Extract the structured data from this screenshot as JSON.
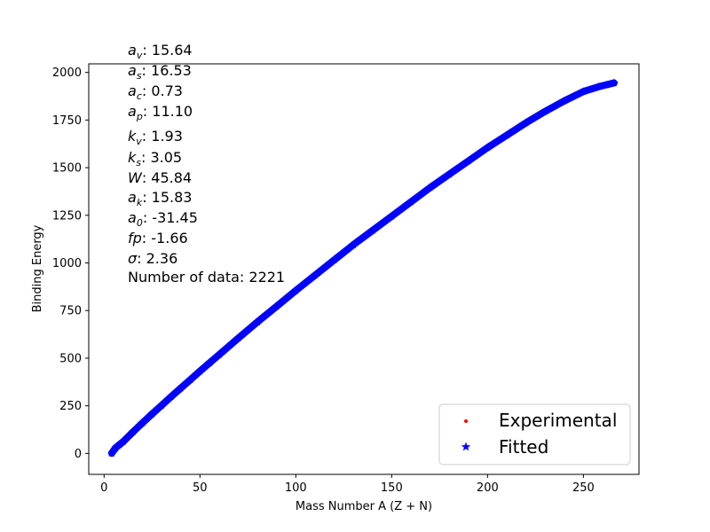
{
  "chart_data": {
    "type": "scatter",
    "xlabel": "Mass Number A (Z + N)",
    "ylabel": "Binding Energy",
    "xlim": [
      -8,
      279
    ],
    "ylim": [
      -110,
      2045
    ],
    "xticks": [
      0,
      50,
      100,
      150,
      200,
      250
    ],
    "yticks": [
      0,
      250,
      500,
      750,
      1000,
      1250,
      1500,
      1750,
      2000
    ],
    "grid": false,
    "legend_position": "lower-right",
    "point_count": 2221,
    "series": [
      {
        "name": "Experimental",
        "marker": "dot",
        "color": "#ff0000",
        "x": [
          4,
          6,
          8,
          10,
          15,
          20,
          25,
          30,
          35,
          40,
          45,
          50,
          55,
          60,
          70,
          80,
          90,
          100,
          110,
          120,
          130,
          140,
          150,
          160,
          170,
          180,
          190,
          200,
          210,
          220,
          230,
          240,
          250,
          258,
          262,
          266
        ],
        "y": [
          1,
          29,
          46,
          62,
          112,
          160,
          207,
          252,
          298,
          343,
          387,
          432,
          475,
          518,
          605,
          690,
          772,
          855,
          935,
          1015,
          1095,
          1170,
          1245,
          1320,
          1395,
          1465,
          1535,
          1605,
          1670,
          1735,
          1795,
          1850,
          1900,
          1925,
          1935,
          1945
        ]
      },
      {
        "name": "Fitted",
        "marker": "star",
        "color": "#0000ff",
        "x": [
          4,
          6,
          8,
          10,
          15,
          20,
          25,
          30,
          35,
          40,
          45,
          50,
          55,
          60,
          70,
          80,
          90,
          100,
          110,
          120,
          130,
          140,
          150,
          160,
          170,
          180,
          190,
          200,
          210,
          220,
          230,
          240,
          250,
          258,
          262,
          266
        ],
        "y": [
          1,
          29,
          46,
          62,
          112,
          160,
          207,
          252,
          298,
          343,
          387,
          432,
          475,
          518,
          605,
          690,
          772,
          855,
          935,
          1015,
          1095,
          1170,
          1245,
          1320,
          1395,
          1465,
          1535,
          1605,
          1670,
          1735,
          1795,
          1850,
          1900,
          1925,
          1935,
          1945
        ]
      }
    ]
  },
  "annotations": [
    {
      "sym": "a",
      "sub": "v",
      "text": ": 15.64"
    },
    {
      "sym": "a",
      "sub": "s",
      "text": ": 16.53"
    },
    {
      "sym": "a",
      "sub": "c",
      "text": ": 0.73"
    },
    {
      "sym": "a",
      "sub": "p",
      "text": ": 11.10"
    },
    {
      "sym": "k",
      "sub": "v",
      "text": ": 1.93"
    },
    {
      "sym": "k",
      "sub": "s",
      "text": ": 3.05"
    },
    {
      "sym": "W",
      "sub": "",
      "text": ": 45.84"
    },
    {
      "sym": "a",
      "sub": "k",
      "text": ": 15.83"
    },
    {
      "sym": "a",
      "sub": "0",
      "text": ": -31.45"
    },
    {
      "sym": "fp",
      "sub": "",
      "text": ": -1.66"
    },
    {
      "sym": "σ",
      "sub": "",
      "text": ": 2.36"
    },
    {
      "sym": "",
      "sub": "",
      "text": "Number of data: 2221"
    }
  ]
}
